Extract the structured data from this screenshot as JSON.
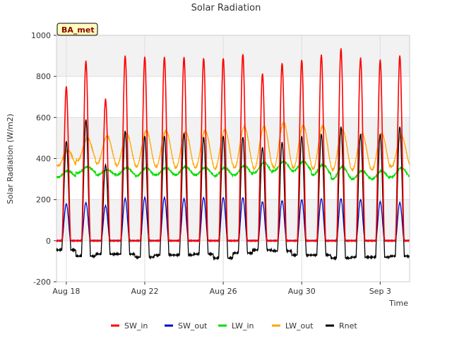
{
  "chart_data": {
    "type": "line",
    "title": "Solar Radiation",
    "xlabel": "Time",
    "ylabel": "Solar Radiation (W/m2)",
    "badge": "BA_met",
    "ylim": [
      -200,
      1000
    ],
    "yticks": [
      -200,
      0,
      200,
      400,
      600,
      800,
      1000
    ],
    "x_start": "Aug 18",
    "x_range_days": [
      -0.5,
      17.5
    ],
    "xticks": [
      {
        "day": 0,
        "label": "Aug 18"
      },
      {
        "day": 4,
        "label": "Aug 22"
      },
      {
        "day": 8,
        "label": "Aug 26"
      },
      {
        "day": 12,
        "label": "Aug 30"
      },
      {
        "day": 16,
        "label": "Sep 3"
      }
    ],
    "days": [
      0,
      1,
      2,
      3,
      4,
      5,
      6,
      7,
      8,
      9,
      10,
      11,
      12,
      13,
      14,
      15,
      16,
      17
    ],
    "series": [
      {
        "name": "SW_in",
        "color": "#ff0000",
        "daily_peak": [
          750,
          875,
          690,
          900,
          895,
          895,
          895,
          890,
          890,
          910,
          815,
          865,
          880,
          905,
          935,
          890,
          880,
          900
        ]
      },
      {
        "name": "SW_out",
        "color": "#0000cc",
        "daily_peak": [
          180,
          185,
          170,
          205,
          210,
          210,
          205,
          210,
          210,
          210,
          190,
          195,
          200,
          205,
          205,
          200,
          190,
          185
        ]
      },
      {
        "name": "LW_in",
        "color": "#00dd00",
        "daily_min": [
          310,
          330,
          320,
          320,
          315,
          320,
          320,
          320,
          315,
          320,
          330,
          340,
          340,
          320,
          300,
          300,
          300,
          310
        ],
        "daily_max": [
          340,
          360,
          345,
          355,
          355,
          355,
          360,
          355,
          355,
          365,
          380,
          385,
          385,
          370,
          360,
          340,
          340,
          355
        ]
      },
      {
        "name": "LW_out",
        "color": "#ffa500",
        "daily_min": [
          365,
          390,
          375,
          365,
          360,
          360,
          355,
          355,
          350,
          355,
          350,
          355,
          355,
          350,
          345,
          345,
          345,
          360
        ],
        "daily_max": [
          440,
          500,
          510,
          520,
          535,
          535,
          530,
          535,
          540,
          555,
          555,
          575,
          560,
          560,
          540,
          520,
          520,
          510
        ]
      },
      {
        "name": "Rnet",
        "color": "#000000",
        "daily_peak": [
          485,
          590,
          370,
          535,
          510,
          510,
          525,
          505,
          510,
          505,
          455,
          480,
          510,
          520,
          555,
          520,
          520,
          555
        ],
        "night_min": [
          -45,
          -75,
          -65,
          -65,
          -80,
          -70,
          -70,
          -65,
          -85,
          -60,
          -45,
          -50,
          -70,
          -70,
          -85,
          -80,
          -80,
          -75
        ]
      }
    ],
    "legend_position": "bottom"
  }
}
